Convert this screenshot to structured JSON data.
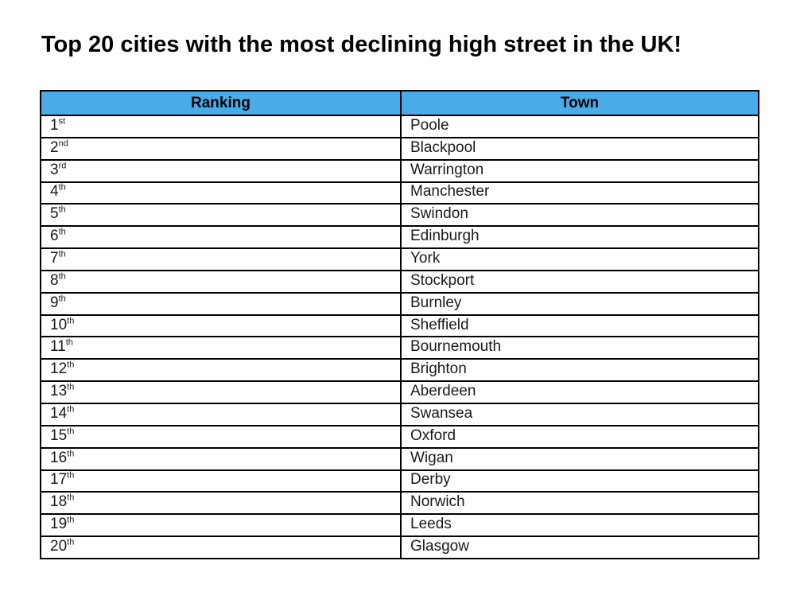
{
  "title": "Top 20 cities with the most declining high street in the UK!",
  "colors": {
    "header_bg": "#49ACE8",
    "border": "#000000",
    "text": "#000000"
  },
  "table": {
    "headers": [
      "Ranking",
      "Town"
    ],
    "rows": [
      {
        "rank": "1",
        "suffix": "st",
        "town": "Poole"
      },
      {
        "rank": "2",
        "suffix": "nd",
        "town": "Blackpool"
      },
      {
        "rank": "3",
        "suffix": "rd",
        "town": "Warrington"
      },
      {
        "rank": "4",
        "suffix": "th",
        "town": "Manchester"
      },
      {
        "rank": "5",
        "suffix": "th",
        "town": "Swindon"
      },
      {
        "rank": "6",
        "suffix": "th",
        "town": "Edinburgh"
      },
      {
        "rank": "7",
        "suffix": "th",
        "town": "York"
      },
      {
        "rank": "8",
        "suffix": "th",
        "town": "Stockport"
      },
      {
        "rank": "9",
        "suffix": "th",
        "town": "Burnley"
      },
      {
        "rank": "10",
        "suffix": "th",
        "town": "Sheffield"
      },
      {
        "rank": "11",
        "suffix": "th",
        "town": "Bournemouth"
      },
      {
        "rank": "12",
        "suffix": "th",
        "town": "Brighton"
      },
      {
        "rank": "13",
        "suffix": "th",
        "town": "Aberdeen"
      },
      {
        "rank": "14",
        "suffix": "th",
        "town": "Swansea"
      },
      {
        "rank": "15",
        "suffix": "th",
        "town": "Oxford"
      },
      {
        "rank": "16",
        "suffix": "th",
        "town": "Wigan"
      },
      {
        "rank": "17",
        "suffix": "th",
        "town": "Derby"
      },
      {
        "rank": "18",
        "suffix": "th",
        "town": "Norwich"
      },
      {
        "rank": "19",
        "suffix": "th",
        "town": "Leeds"
      },
      {
        "rank": "20",
        "suffix": "th",
        "town": "Glasgow"
      }
    ]
  }
}
